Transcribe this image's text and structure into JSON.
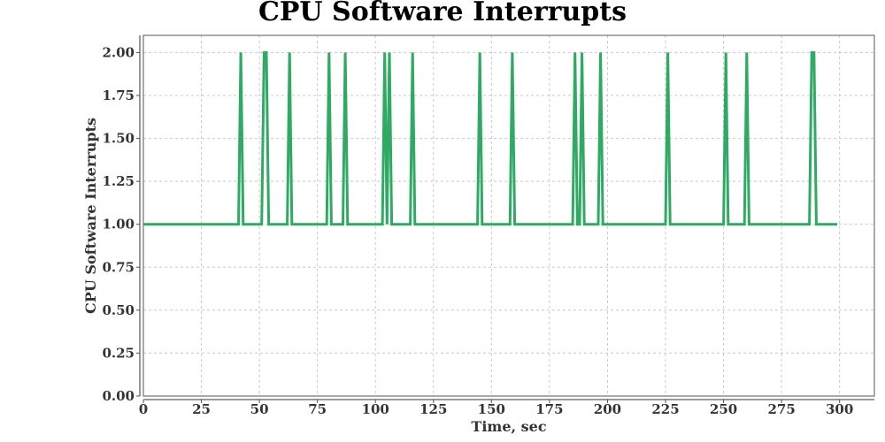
{
  "chart_data": {
    "type": "line",
    "title": "CPU Software Interrupts",
    "xlabel": "Time, sec",
    "ylabel": "CPU Software Interrupts",
    "xlim": [
      0,
      315
    ],
    "ylim": [
      0,
      2.1
    ],
    "x_ticks": [
      0,
      25,
      50,
      75,
      100,
      125,
      150,
      175,
      200,
      225,
      250,
      275,
      300
    ],
    "y_ticks": [
      0.0,
      0.25,
      0.5,
      0.75,
      1.0,
      1.25,
      1.5,
      1.75,
      2.0
    ],
    "y_tick_labels": [
      "0.00",
      "0.25",
      "0.50",
      "0.75",
      "1.00",
      "1.25",
      "1.50",
      "1.75",
      "2.00"
    ],
    "grid": true,
    "series": [
      {
        "color": "#2eaa63",
        "x": [
          0,
          40,
          41,
          42,
          43,
          51,
          52,
          53,
          54,
          62,
          63,
          64,
          79,
          80,
          81,
          86,
          87,
          88,
          103,
          104,
          105,
          106,
          107,
          115,
          116,
          117,
          144,
          145,
          146,
          158,
          159,
          160,
          185,
          186,
          187,
          188,
          189,
          190,
          196,
          197,
          198,
          225,
          226,
          227,
          250,
          251,
          252,
          259,
          260,
          261,
          287,
          288,
          289,
          290,
          299
        ],
        "y": [
          1,
          1,
          1,
          2,
          1,
          1,
          2,
          2,
          1,
          1,
          2,
          1,
          1,
          2,
          1,
          1,
          2,
          1,
          1,
          2,
          1,
          2,
          1,
          1,
          2,
          1,
          1,
          2,
          1,
          1,
          2,
          1,
          1,
          2,
          1,
          1,
          2,
          1,
          1,
          2,
          1,
          1,
          2,
          1,
          1,
          2,
          1,
          1,
          2,
          1,
          1,
          2,
          2,
          1,
          1
        ]
      }
    ]
  }
}
